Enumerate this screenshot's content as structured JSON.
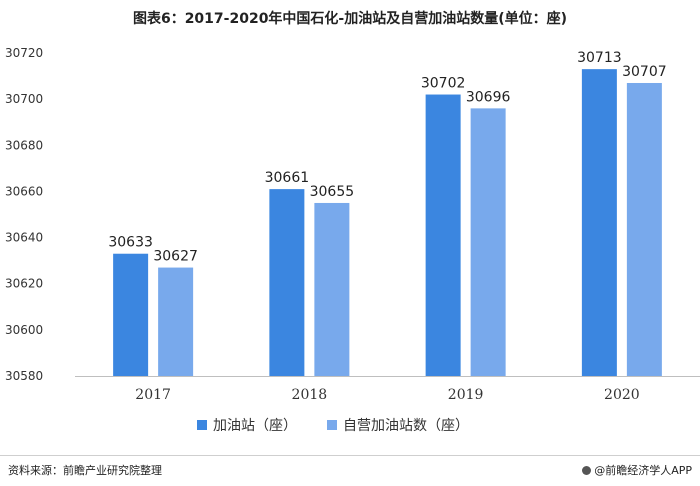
{
  "title": "图表6：2017-2020年中国石化-加油站及自营加油站数量(单位：座)",
  "footer": {
    "source": "资料来源：前瞻产业研究院整理",
    "brand": "@前瞻经济学人APP"
  },
  "chart_data": {
    "type": "bar",
    "title": "图表6：2017-2020年中国石化-加油站及自营加油站数量(单位：座)",
    "categories": [
      "2017",
      "2018",
      "2019",
      "2020"
    ],
    "series": [
      {
        "name": "加油站（座）",
        "values": [
          30633,
          30661,
          30702,
          30713
        ],
        "color": "#3b86e0"
      },
      {
        "name": "自营加油站数（座）",
        "values": [
          30627,
          30655,
          30696,
          30707
        ],
        "color": "#78a9ec"
      }
    ],
    "ylim": [
      30580,
      30720
    ],
    "yticks": [
      30580,
      30600,
      30620,
      30640,
      30660,
      30680,
      30700,
      30720
    ],
    "grid": false,
    "legend": "bottom",
    "data_labels": true
  }
}
